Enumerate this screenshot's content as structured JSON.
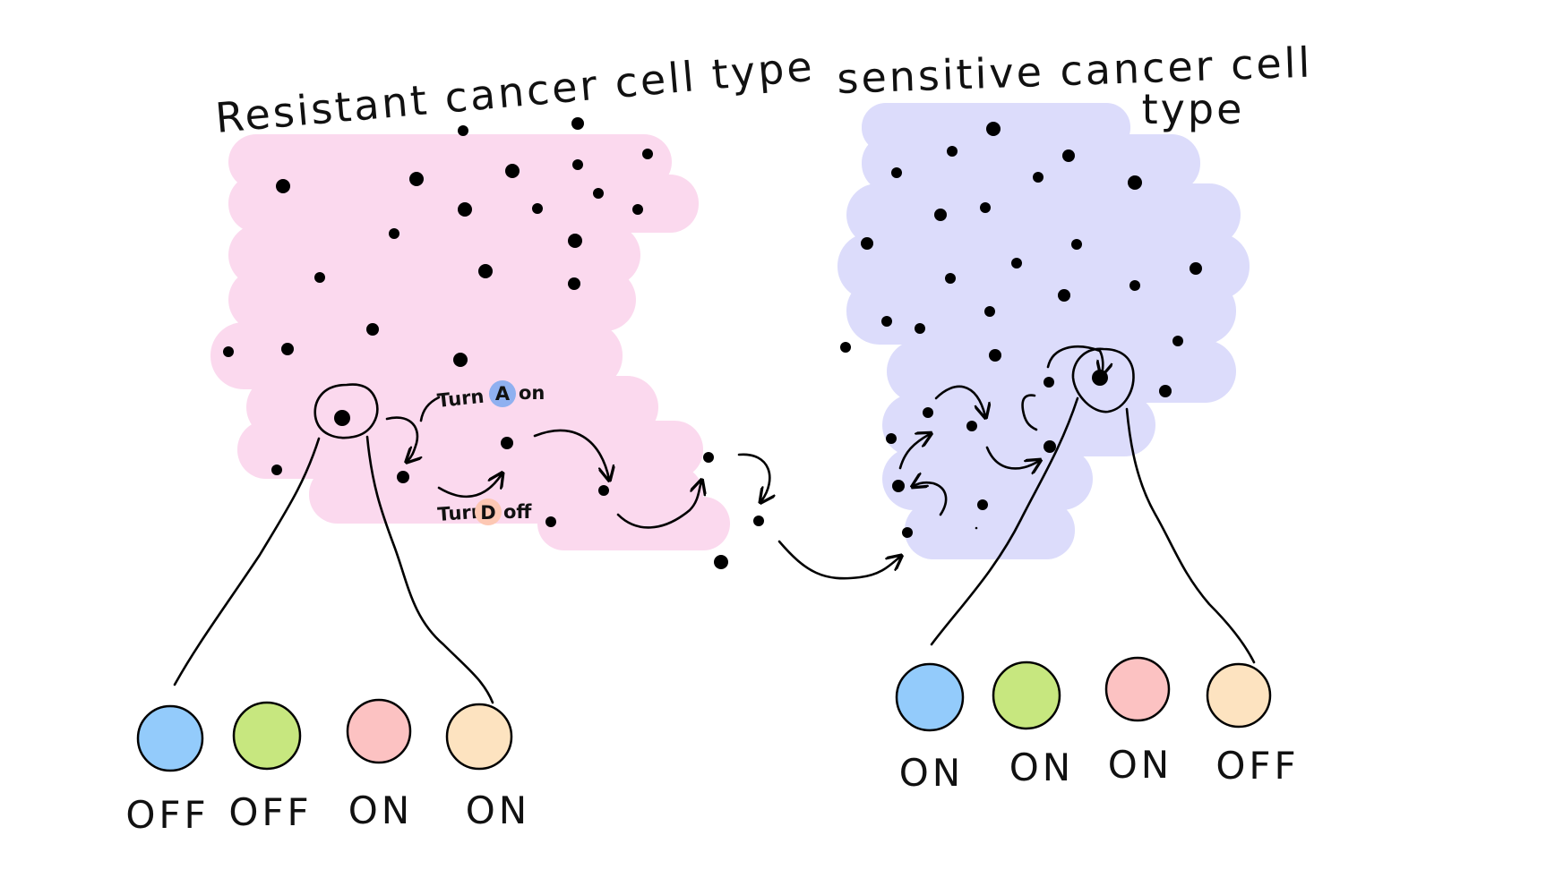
{
  "panels": {
    "resistant": {
      "title": "Resistant cancer cell type",
      "color": "#fbd9ee",
      "genes": [
        {
          "color": "#93cbfb",
          "state": "OFF"
        },
        {
          "color": "#c7e77f",
          "state": "OFF"
        },
        {
          "color": "#fcc2c2",
          "state": "ON"
        },
        {
          "color": "#fde3c0",
          "state": "ON"
        }
      ]
    },
    "sensitive": {
      "title_line1": "sensitive cancer cell",
      "title_line2": "type",
      "color": "#dcdcfb",
      "genes": [
        {
          "color": "#93cbfb",
          "state": "ON"
        },
        {
          "color": "#c7e77f",
          "state": "ON"
        },
        {
          "color": "#fcc2c2",
          "state": "ON"
        },
        {
          "color": "#fde3c0",
          "state": "OFF"
        }
      ]
    }
  },
  "annotations": {
    "turn_a": {
      "prefix": "Turn",
      "letter": "A",
      "suffix": "on",
      "badge_color": "#8fb0f0"
    },
    "turn_d": {
      "prefix": "Turn",
      "letter": "D",
      "suffix": "off",
      "badge_color": "#fdc8b4"
    }
  }
}
